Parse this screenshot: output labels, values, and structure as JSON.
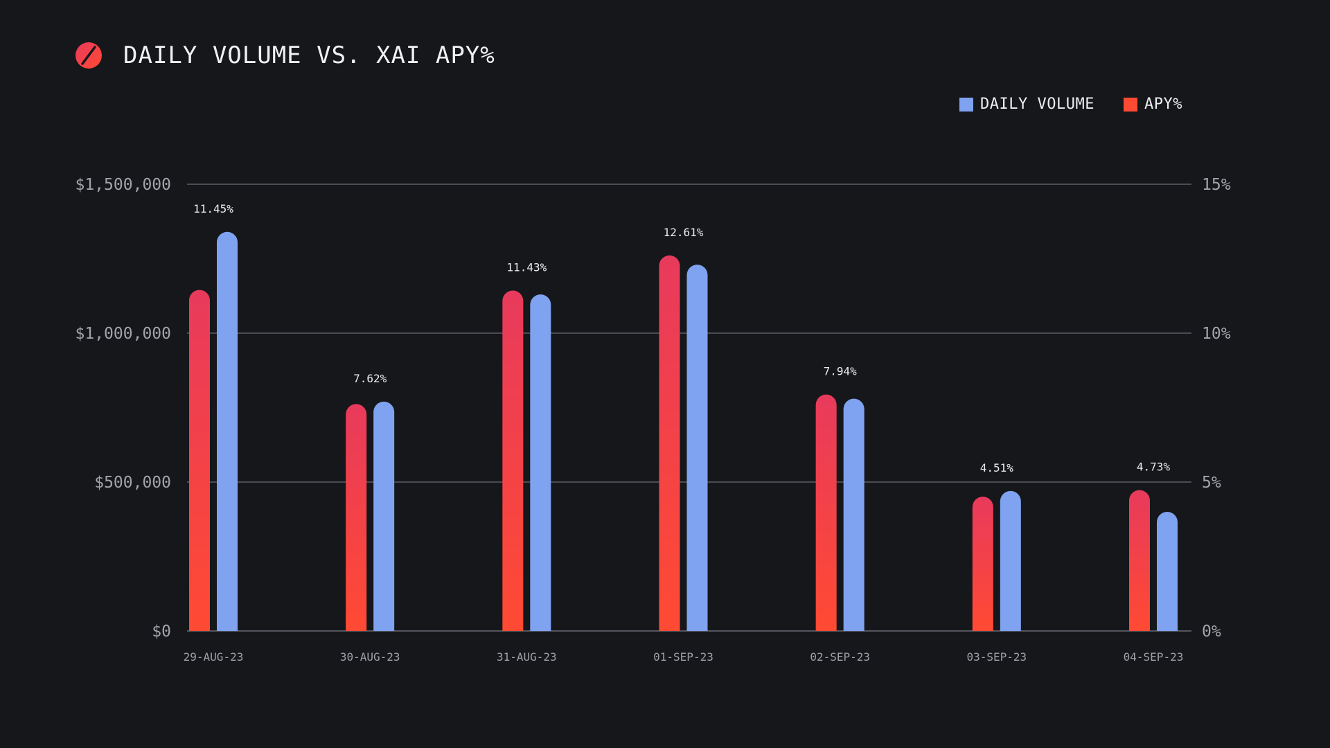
{
  "header": {
    "title": "DAILY VOLUME VS. XAI APY%",
    "logo_icon": "slashed-circle-icon"
  },
  "colors": {
    "background": "#16171b",
    "volume": "#7fa3f0",
    "apy_top": "#e83a5c",
    "apy_bottom": "#ff4a33",
    "gridline": "#5c5e66"
  },
  "legend": {
    "items": [
      {
        "label": "DAILY VOLUME",
        "color": "#7fa3f0"
      },
      {
        "label": "APY%",
        "color": "#ff4a33"
      }
    ]
  },
  "chart_data": {
    "type": "bar",
    "title": "DAILY VOLUME VS. XAI APY%",
    "categories": [
      "29-AUG-23",
      "30-AUG-23",
      "31-AUG-23",
      "01-SEP-23",
      "02-SEP-23",
      "03-SEP-23",
      "04-SEP-23"
    ],
    "series": [
      {
        "name": "APY%",
        "axis": "right",
        "values": [
          11.45,
          7.62,
          11.43,
          12.61,
          7.94,
          4.51,
          4.73
        ],
        "data_labels": [
          "11.45%",
          "7.62%",
          "11.43%",
          "12.61%",
          "7.94%",
          "4.51%",
          "4.73%"
        ]
      },
      {
        "name": "DAILY VOLUME",
        "axis": "left",
        "values": [
          1340000,
          770000,
          1130000,
          1230000,
          780000,
          470000,
          400000
        ]
      }
    ],
    "y_left": {
      "range": [
        0,
        1500000
      ],
      "ticks": [
        0,
        500000,
        1000000,
        1500000
      ],
      "tick_labels": [
        "$0",
        "$500,000",
        "$1,000,000",
        "$1,500,000"
      ]
    },
    "y_right": {
      "range": [
        0,
        15
      ],
      "ticks": [
        0,
        5,
        10,
        15
      ],
      "tick_labels": [
        "0%",
        "5%",
        "10%",
        "15%"
      ]
    },
    "grid": true,
    "legend_position": "top-right"
  }
}
